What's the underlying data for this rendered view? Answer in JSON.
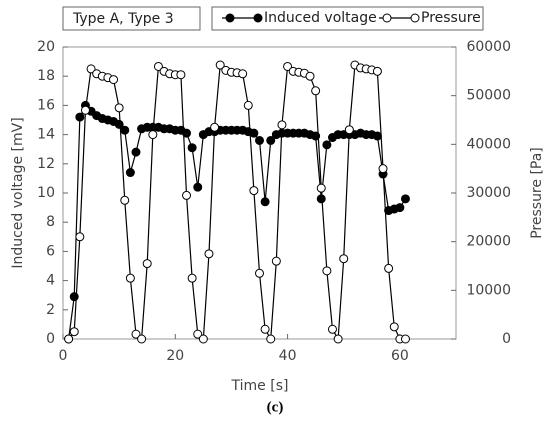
{
  "chart_data": {
    "type": "line",
    "annotation": "Type A, Type 3",
    "caption": "(c)",
    "xlabel": "Time   [s]",
    "ylabel": "Induced voltage  [mV]",
    "y2label": "Pressure  [Pa]",
    "x": [
      1,
      2,
      3,
      4,
      5,
      6,
      7,
      8,
      9,
      10,
      11,
      12,
      13,
      14,
      15,
      16,
      17,
      18,
      19,
      20,
      21,
      22,
      23,
      24,
      25,
      26,
      27,
      28,
      29,
      30,
      31,
      32,
      33,
      34,
      35,
      36,
      37,
      38,
      39,
      40,
      41,
      42,
      43,
      44,
      45,
      46,
      47,
      48,
      49,
      50,
      51,
      52,
      53,
      54,
      55,
      56,
      57,
      58,
      59,
      60,
      61
    ],
    "series": [
      {
        "name": "Induced voltage",
        "color": "#000000",
        "marker": "filled",
        "axis": "y",
        "values": [
          0,
          2.9,
          15.2,
          16,
          15.6,
          15.3,
          15.1,
          15,
          14.9,
          14.7,
          14.3,
          11.4,
          12.8,
          14.4,
          14.5,
          14.5,
          14.5,
          14.4,
          14.4,
          14.3,
          14.3,
          14.1,
          13.1,
          10.4,
          14,
          14.2,
          14.2,
          14.3,
          14.3,
          14.3,
          14.3,
          14.3,
          14.2,
          14.1,
          13.6,
          9.4,
          13.6,
          14,
          14.1,
          14.1,
          14.1,
          14.1,
          14.1,
          14,
          13.9,
          9.6,
          13.3,
          13.8,
          14,
          14,
          14,
          14,
          14.1,
          14,
          14,
          13.9,
          11.3,
          8.8,
          8.9,
          9,
          9.6
        ]
      },
      {
        "name": "Pressure",
        "color": "#000000",
        "marker": "hollow",
        "axis": "y2",
        "values": [
          0,
          1500,
          21000,
          47000,
          55500,
          54500,
          54000,
          53700,
          53300,
          47500,
          28500,
          12500,
          1000,
          0,
          15500,
          42000,
          56000,
          55000,
          54500,
          54300,
          54300,
          29500,
          12500,
          1000,
          0,
          17500,
          43500,
          56300,
          55200,
          54800,
          54700,
          54500,
          48000,
          30500,
          13500,
          2000,
          0,
          16000,
          44000,
          56000,
          55000,
          54800,
          54600,
          54000,
          51000,
          31000,
          14000,
          2000,
          0,
          16500,
          43000,
          56300,
          55700,
          55500,
          55300,
          55000,
          35000,
          14500,
          2500,
          0,
          0
        ]
      }
    ],
    "xlim": [
      0,
      70
    ],
    "xticks": [
      0,
      20,
      40,
      60
    ],
    "ylim": [
      0,
      20
    ],
    "yticks": [
      0,
      2,
      4,
      6,
      8,
      10,
      12,
      14,
      16,
      18,
      20
    ],
    "y2lim": [
      0,
      60000
    ],
    "y2ticks": [
      0,
      10000,
      20000,
      30000,
      40000,
      50000,
      60000
    ],
    "grid": false,
    "legend": "top"
  }
}
